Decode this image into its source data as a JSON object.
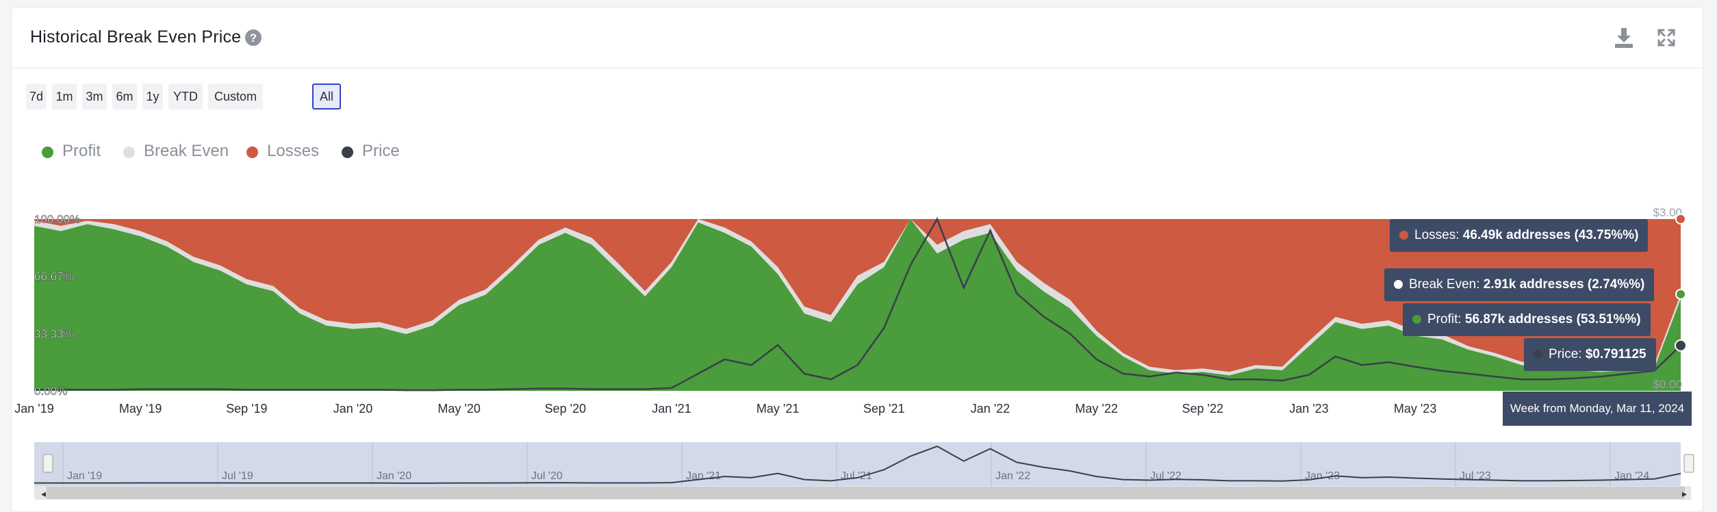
{
  "header": {
    "title": "Historical Break Even Price"
  },
  "icons": {
    "help": "question-circle-icon",
    "download": "download-icon",
    "expand": "fullscreen-expand-icon"
  },
  "ranges": [
    "7d",
    "1m",
    "3m",
    "6m",
    "1y",
    "YTD",
    "Custom",
    "All"
  ],
  "active_range": "All",
  "colors": {
    "profit": "#4a9c3c",
    "break_even": "#dedede",
    "losses": "#cd5a41",
    "price": "#3b3f4a",
    "tooltip_bg": "#3d4b66",
    "navigator_bg": "#d4d9ea"
  },
  "tooltips": {
    "losses": {
      "label": "Losses: ",
      "value": "46.49k addresses (43.75%%)"
    },
    "break_even": {
      "label": "Break Even: ",
      "value": "2.91k addresses (2.74%%)"
    },
    "profit": {
      "label": "Profit: ",
      "value": "56.87k addresses (53.51%%)"
    },
    "price": {
      "label": "Price: ",
      "value": "$0.791125"
    },
    "x_label": "Week from Monday, Mar 11, 2024"
  },
  "chart_data": {
    "type": "area",
    "stacking": "percent",
    "legend": [
      "Profit",
      "Break Even",
      "Losses",
      "Price"
    ],
    "legend_placement": "top-left",
    "x_tick_labels": [
      "Jan '19",
      "May '19",
      "Sep '19",
      "Jan '20",
      "May '20",
      "Sep '20",
      "Jan '21",
      "May '21",
      "Sep '21",
      "Jan '22",
      "May '22",
      "Sep '22",
      "Jan '23",
      "May '23"
    ],
    "y_left_tick_labels": [
      "100.00%",
      "66.67%",
      "33.33%",
      "0.00%"
    ],
    "y_right_tick_labels": [
      "$3.00",
      "$0.00"
    ],
    "y_right_ylim": [
      0,
      3
    ],
    "navigator_labels": [
      "Jan '19",
      "Jul '19",
      "Jan '20",
      "Jul '20",
      "Jan '21",
      "Jul '21",
      "Jan '22",
      "Jul '22",
      "Jan '23",
      "Jul '23",
      "Jan '24"
    ],
    "x": [
      "2019-01",
      "2019-02",
      "2019-03",
      "2019-04",
      "2019-05",
      "2019-06",
      "2019-07",
      "2019-08",
      "2019-09",
      "2019-10",
      "2019-11",
      "2019-12",
      "2020-01",
      "2020-02",
      "2020-03",
      "2020-04",
      "2020-05",
      "2020-06",
      "2020-07",
      "2020-08",
      "2020-09",
      "2020-10",
      "2020-11",
      "2020-12",
      "2021-01",
      "2021-02",
      "2021-03",
      "2021-04",
      "2021-05",
      "2021-06",
      "2021-07",
      "2021-08",
      "2021-09",
      "2021-10",
      "2021-11",
      "2021-12",
      "2022-01",
      "2022-02",
      "2022-03",
      "2022-04",
      "2022-05",
      "2022-06",
      "2022-07",
      "2022-08",
      "2022-09",
      "2022-10",
      "2022-11",
      "2022-12",
      "2023-01",
      "2023-02",
      "2023-03",
      "2023-04",
      "2023-05",
      "2023-06",
      "2023-07",
      "2023-08",
      "2023-09",
      "2023-10",
      "2023-11",
      "2023-12",
      "2024-01",
      "2024-02",
      "2024-03"
    ],
    "series": [
      {
        "name": "Profit",
        "unit": "%",
        "values": [
          96,
          93,
          97,
          94,
          90,
          84,
          75,
          70,
          62,
          58,
          45,
          38,
          36,
          37,
          33,
          38,
          50,
          56,
          70,
          85,
          92,
          85,
          70,
          55,
          72,
          98,
          92,
          84,
          68,
          45,
          40,
          62,
          72,
          100,
          80,
          88,
          92,
          70,
          58,
          48,
          32,
          20,
          12,
          10,
          11,
          9,
          13,
          12,
          26,
          40,
          36,
          38,
          32,
          30,
          24,
          20,
          15,
          13,
          12,
          11,
          12,
          13,
          53.51
        ]
      },
      {
        "name": "Break Even",
        "unit": "%",
        "values": [
          3,
          3,
          2,
          3,
          3,
          3,
          3,
          3,
          3,
          3,
          3,
          3,
          3,
          3,
          3,
          3,
          3,
          3,
          3,
          3,
          3,
          4,
          4,
          3,
          3,
          2,
          3,
          3,
          4,
          4,
          4,
          5,
          3,
          0,
          5,
          5,
          5,
          5,
          5,
          5,
          3,
          2,
          2,
          2,
          2,
          2,
          2,
          2,
          3,
          3,
          3,
          3,
          3,
          3,
          2,
          2,
          2,
          2,
          2,
          2,
          2,
          2,
          2.74
        ]
      },
      {
        "name": "Losses",
        "unit": "%",
        "values": [
          1,
          4,
          1,
          3,
          7,
          13,
          22,
          27,
          35,
          39,
          52,
          59,
          61,
          60,
          64,
          59,
          47,
          41,
          27,
          12,
          5,
          11,
          26,
          42,
          25,
          0,
          5,
          13,
          28,
          51,
          56,
          33,
          25,
          0,
          15,
          7,
          3,
          25,
          37,
          47,
          65,
          78,
          86,
          88,
          87,
          89,
          85,
          86,
          71,
          57,
          61,
          59,
          65,
          67,
          74,
          78,
          83,
          85,
          86,
          87,
          86,
          85,
          43.75
        ]
      },
      {
        "name": "Price",
        "unit": "$",
        "values": [
          0.02,
          0.02,
          0.02,
          0.02,
          0.03,
          0.03,
          0.03,
          0.03,
          0.02,
          0.02,
          0.02,
          0.02,
          0.02,
          0.02,
          0.01,
          0.01,
          0.02,
          0.02,
          0.03,
          0.04,
          0.04,
          0.03,
          0.03,
          0.03,
          0.05,
          0.3,
          0.55,
          0.45,
          0.8,
          0.3,
          0.2,
          0.45,
          1.1,
          2.2,
          3.0,
          1.8,
          2.8,
          1.7,
          1.3,
          1.0,
          0.55,
          0.3,
          0.25,
          0.32,
          0.28,
          0.2,
          0.2,
          0.18,
          0.28,
          0.6,
          0.45,
          0.5,
          0.42,
          0.35,
          0.3,
          0.25,
          0.2,
          0.2,
          0.22,
          0.25,
          0.3,
          0.35,
          0.791125
        ]
      }
    ]
  }
}
